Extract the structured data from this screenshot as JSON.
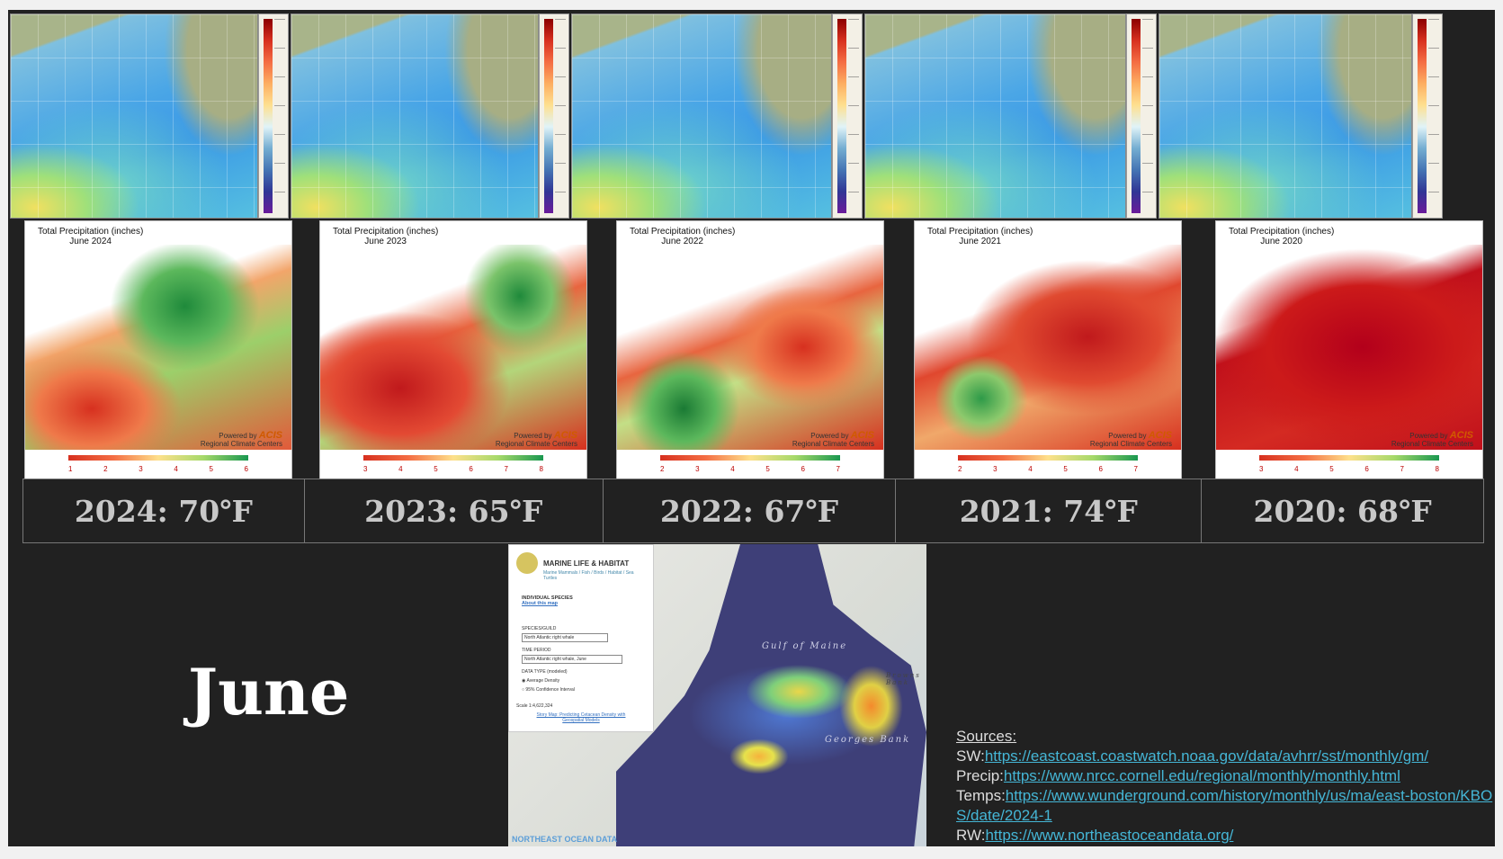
{
  "colors": {
    "background": "#212121",
    "link": "#45b6d6",
    "temp_text": "#c8c8c8"
  },
  "sst_panels": [
    {
      "year": "2024"
    },
    {
      "year": "2023"
    },
    {
      "year": "2022"
    },
    {
      "year": "2021"
    },
    {
      "year": "2020"
    }
  ],
  "precip_panels": [
    {
      "title": "Total Precipitation (inches)",
      "subtitle": "June 2024",
      "legend": [
        "1",
        "2",
        "3",
        "4",
        "5",
        "6"
      ],
      "dominant": "green"
    },
    {
      "title": "Total Precipitation (inches)",
      "subtitle": "June 2023",
      "legend": [
        "3",
        "4",
        "5",
        "6",
        "7",
        "8"
      ],
      "dominant": "mixed"
    },
    {
      "title": "Total Precipitation (inches)",
      "subtitle": "June 2022",
      "legend": [
        "2",
        "3",
        "4",
        "5",
        "6",
        "7"
      ],
      "dominant": "mixed"
    },
    {
      "title": "Total Precipitation (inches)",
      "subtitle": "June 2021",
      "legend": [
        "2",
        "3",
        "4",
        "5",
        "6",
        "7"
      ],
      "dominant": "red"
    },
    {
      "title": "Total Precipitation (inches)",
      "subtitle": "June 2020",
      "legend": [
        "3",
        "4",
        "5",
        "6",
        "7",
        "8"
      ],
      "dominant": "red"
    }
  ],
  "acis": {
    "powered": "Powered by",
    "brand": "ACIS",
    "caption": "Regional Climate Centers"
  },
  "temps": [
    "2024: 70℉",
    "2023: 65℉",
    "2022: 67℉",
    "2021: 74℉",
    "2020: 68℉"
  ],
  "month": "June",
  "rw_map": {
    "panel_title": "MARINE LIFE & HABITAT",
    "panel_sub": "Marine Mammals / Fish / Birds / Habitat / Sea Turtles",
    "section": "INDIVIDUAL SPECIES",
    "about": "About this map",
    "species_label": "SPECIES/GUILD",
    "species_value": "North Atlantic right whale",
    "period_label": "TIME PERIOD",
    "period_value": "North Atlantic right whale, June",
    "datatype_label": "DATA TYPE (modeled)",
    "opt1": "Average Density",
    "opt2": "95% Confidence Interval",
    "scale": "Scale 1:4,622,324",
    "story": "Story Map: Predicting Cetacean Density with Geospatial Models",
    "gulf": "Gulf of Maine",
    "georges": "Georges Bank",
    "browns": "Browns Bank",
    "brand": "NORTHEAST OCEAN DATA"
  },
  "sources": {
    "header": "Sources:",
    "items": [
      {
        "prefix": "SW:",
        "url": "https://eastcoast.coastwatch.noaa.gov/data/avhrr/sst/monthly/gm/"
      },
      {
        "prefix": "Precip:",
        "url": "https://www.nrcc.cornell.edu/regional/monthly/monthly.html"
      },
      {
        "prefix": "Temps:",
        "url": "https://www.wunderground.com/history/monthly/us/ma/east-boston/KBOS/date/2024-1"
      },
      {
        "prefix": "RW:",
        "url": "https://www.northeastoceandata.org/"
      }
    ]
  }
}
